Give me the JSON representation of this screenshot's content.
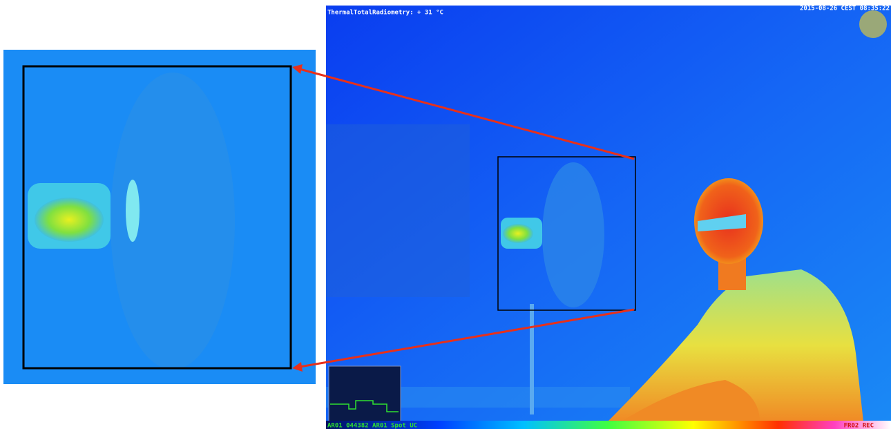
{
  "overlay": {
    "top_left": "ThermalTotalRadiometry: + 31 °C",
    "top_right": "2015-08-26 CEST 08:35:22",
    "bottom_left": "AR01 044382 AR01 Spot UC",
    "bottom_right": "FR02 REC"
  }
}
